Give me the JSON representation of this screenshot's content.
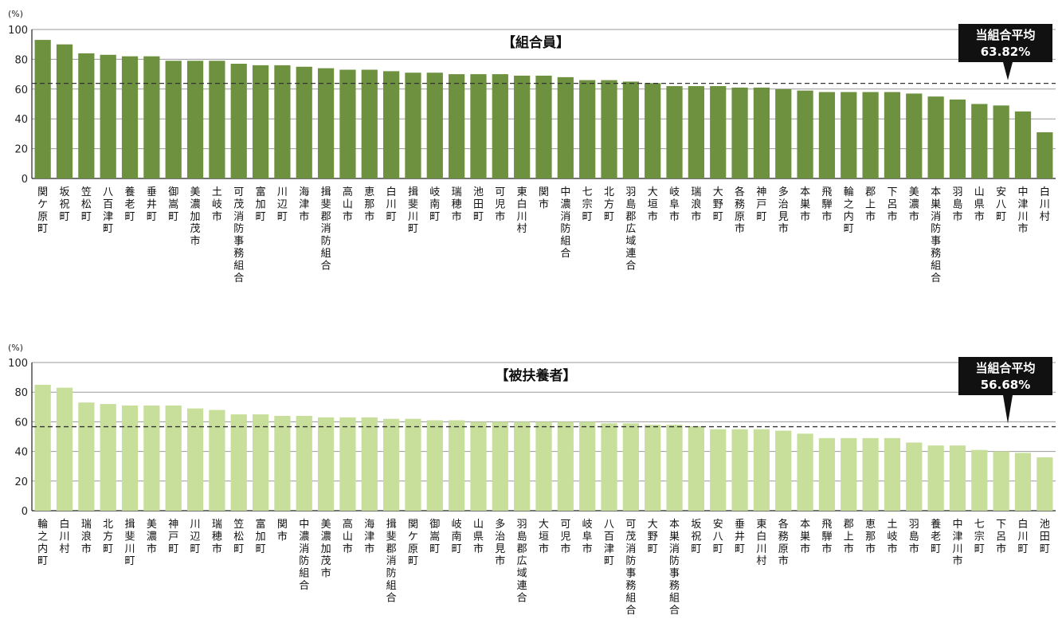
{
  "chart_data": [
    {
      "type": "bar",
      "title": "【組合員】",
      "ylabel": "(%)",
      "ylim": [
        0,
        100
      ],
      "yticks": [
        0,
        20,
        40,
        60,
        80,
        100
      ],
      "grid": true,
      "color": "#6e9140",
      "average": {
        "label": "当組合平均",
        "value_text": "63.82%",
        "value": 63.82
      },
      "categories": [
        "関ケ原町",
        "坂祝町",
        "笠松町",
        "八百津町",
        "養老町",
        "垂井町",
        "御嵩町",
        "美濃加茂市",
        "土岐市",
        "可茂消防事務組合",
        "富加町",
        "川辺町",
        "海津市",
        "揖斐郡消防組合",
        "高山市",
        "恵那市",
        "白川町",
        "揖斐川町",
        "岐南町",
        "瑞穂市",
        "池田町",
        "可児市",
        "東白川村",
        "関市",
        "中濃消防組合",
        "七宗町",
        "北方町",
        "羽島郡広域連合",
        "大垣市",
        "岐阜市",
        "瑞浪市",
        "大野町",
        "各務原市",
        "神戸町",
        "多治見市",
        "本巣市",
        "飛騨市",
        "輪之内町",
        "郡上市",
        "下呂市",
        "美濃市",
        "本巣消防事務組合",
        "羽島市",
        "山県市",
        "安八町",
        "中津川市",
        "白川村"
      ],
      "values": [
        93,
        90,
        84,
        83,
        82,
        82,
        79,
        79,
        79,
        77,
        76,
        76,
        75,
        74,
        73,
        73,
        72,
        71,
        71,
        70,
        70,
        70,
        69,
        69,
        68,
        66,
        66,
        65,
        64,
        62,
        62,
        62,
        61,
        61,
        60,
        59,
        58,
        58,
        58,
        58,
        57,
        55,
        53,
        50,
        49,
        45,
        31
      ]
    },
    {
      "type": "bar",
      "title": "【被扶養者】",
      "ylabel": "(%)",
      "ylim": [
        0,
        100
      ],
      "yticks": [
        0,
        20,
        40,
        60,
        80,
        100
      ],
      "grid": true,
      "color": "#c7df9a",
      "average": {
        "label": "当組合平均",
        "value_text": "56.68%",
        "value": 56.68
      },
      "categories": [
        "輪之内町",
        "白川村",
        "瑞浪市",
        "北方町",
        "揖斐川町",
        "美濃市",
        "神戸町",
        "川辺町",
        "瑞穂市",
        "笠松町",
        "富加町",
        "関市",
        "中濃消防組合",
        "美濃加茂市",
        "高山市",
        "海津市",
        "揖斐郡消防組合",
        "関ケ原町",
        "御嵩町",
        "岐南町",
        "山県市",
        "多治見市",
        "羽島郡広域連合",
        "大垣市",
        "可児市",
        "岐阜市",
        "八百津町",
        "可茂消防事務組合",
        "大野町",
        "本巣消防事務組合",
        "坂祝町",
        "安八町",
        "垂井町",
        "東白川村",
        "各務原市",
        "本巣市",
        "飛騨市",
        "郡上市",
        "恵那市",
        "土岐市",
        "羽島市",
        "養老町",
        "中津川市",
        "七宗町",
        "下呂市",
        "白川町",
        "池田町"
      ],
      "values": [
        85,
        83,
        73,
        72,
        71,
        71,
        71,
        69,
        68,
        65,
        65,
        64,
        64,
        63,
        63,
        63,
        62,
        62,
        61,
        61,
        60,
        60,
        60,
        60,
        60,
        60,
        59,
        59,
        58,
        58,
        57,
        55,
        55,
        55,
        54,
        52,
        49,
        49,
        49,
        49,
        46,
        44,
        44,
        41,
        40,
        39,
        36
      ]
    }
  ]
}
